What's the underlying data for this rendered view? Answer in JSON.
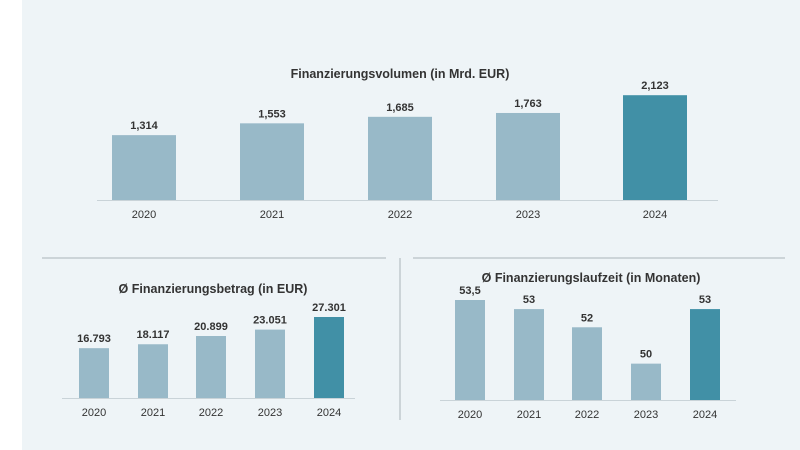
{
  "colors": {
    "normal": "#98b9c8",
    "highlight": "#4190a6",
    "background": "#eef4f7"
  },
  "chart_data": [
    {
      "type": "bar",
      "title": "Finanzierungsvolumen (in Mrd. EUR)",
      "categories": [
        "2020",
        "2021",
        "2022",
        "2023",
        "2024"
      ],
      "values": [
        1.314,
        1.553,
        1.685,
        1.763,
        2.123
      ],
      "value_labels": [
        "1,314",
        "1,553",
        "1,685",
        "1,763",
        "2,123"
      ],
      "highlight_index": 4,
      "xlabel": "",
      "ylabel": "",
      "ylim": [
        0,
        2.3
      ],
      "grid": false,
      "legend": "none"
    },
    {
      "type": "bar",
      "title": "Ø Finanzierungsbetrag (in EUR)",
      "categories": [
        "2020",
        "2021",
        "2022",
        "2023",
        "2024"
      ],
      "values": [
        16793,
        18117,
        20899,
        23051,
        27301
      ],
      "value_labels": [
        "16.793",
        "18.117",
        "20.899",
        "23.051",
        "27.301"
      ],
      "highlight_index": 4,
      "xlabel": "",
      "ylabel": "",
      "ylim": [
        0,
        30000
      ],
      "grid": false,
      "legend": "none"
    },
    {
      "type": "bar",
      "title": "Ø Finanzierungslaufzeit (in Monaten)",
      "categories": [
        "2020",
        "2021",
        "2022",
        "2023",
        "2024"
      ],
      "values": [
        53.5,
        53,
        52,
        50,
        53
      ],
      "value_labels": [
        "53,5",
        "53",
        "52",
        "50",
        "53"
      ],
      "highlight_index": 4,
      "xlabel": "",
      "ylabel": "",
      "ylim": [
        48,
        54
      ],
      "grid": false,
      "legend": "none"
    }
  ]
}
